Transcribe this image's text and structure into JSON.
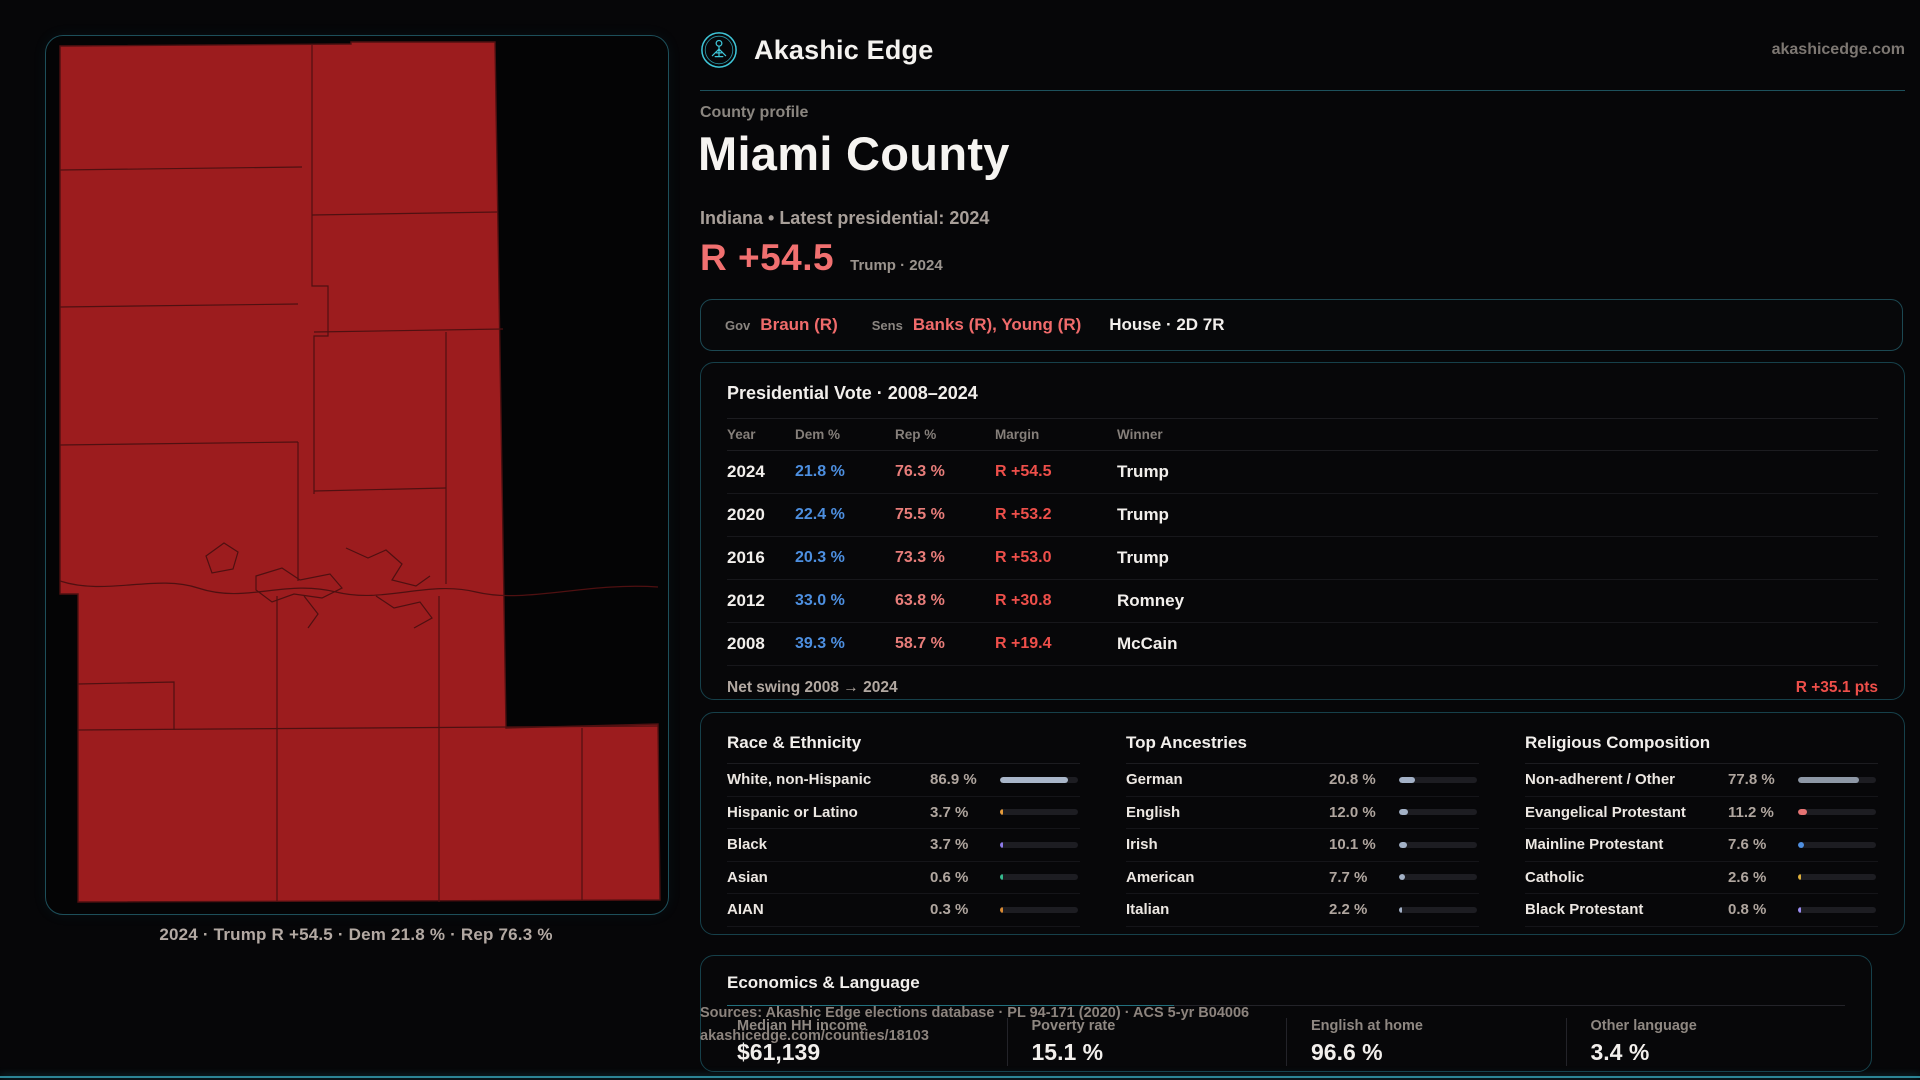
{
  "brand": {
    "name": "Akashic Edge",
    "site": "akashicedge.com"
  },
  "map": {
    "caption": "2024 · Trump R +54.5 · Dem 21.8 % · Rep 76.3 %"
  },
  "profile": {
    "kicker": "County profile",
    "title": "Miami County",
    "subtitle": "Indiana • Latest presidential: 2024",
    "margin_big": "R +54.5",
    "margin_note": "Trump · 2024"
  },
  "officials": {
    "gov_label": "Gov",
    "gov_value": "Braun (R)",
    "sens_label": "Sens",
    "sens_value": "Banks (R), Young (R)",
    "house_value": "House · 2D 7R"
  },
  "vote_table": {
    "title": "Presidential Vote · 2008–2024",
    "columns": [
      "Year",
      "Dem %",
      "Rep %",
      "Margin",
      "Winner"
    ],
    "rows": [
      {
        "year": "2024",
        "dem": "21.8 %",
        "rep": "76.3 %",
        "margin": "R +54.5",
        "winner": "Trump"
      },
      {
        "year": "2020",
        "dem": "22.4 %",
        "rep": "75.5 %",
        "margin": "R +53.2",
        "winner": "Trump"
      },
      {
        "year": "2016",
        "dem": "20.3 %",
        "rep": "73.3 %",
        "margin": "R +53.0",
        "winner": "Trump"
      },
      {
        "year": "2012",
        "dem": "33.0 %",
        "rep": "63.8 %",
        "margin": "R +30.8",
        "winner": "Romney"
      },
      {
        "year": "2008",
        "dem": "39.3 %",
        "rep": "58.7 %",
        "margin": "R +19.4",
        "winner": "McCain"
      }
    ],
    "net_swing_label": "Net swing 2008 → 2024",
    "net_swing_value": "R +35.1 pts"
  },
  "demographics": [
    {
      "title": "Race & Ethnicity",
      "rows": [
        {
          "label": "White, non-Hispanic",
          "value": "86.9 %",
          "pct": 86.9,
          "color": "#a9b6c9"
        },
        {
          "label": "Hispanic or Latino",
          "value": "3.7 %",
          "pct": 3.7,
          "color": "#e59b3b"
        },
        {
          "label": "Black",
          "value": "3.7 %",
          "pct": 3.7,
          "color": "#8d7ae8"
        },
        {
          "label": "Asian",
          "value": "0.6 %",
          "pct": 0.6,
          "color": "#36b98e"
        },
        {
          "label": "AIAN",
          "value": "0.3 %",
          "pct": 0.3,
          "color": "#d98a33"
        }
      ]
    },
    {
      "title": "Top Ancestries",
      "rows": [
        {
          "label": "German",
          "value": "20.8 %",
          "pct": 20.8,
          "color": "#a3b1c6"
        },
        {
          "label": "English",
          "value": "12.0 %",
          "pct": 12.0,
          "color": "#a3b1c6"
        },
        {
          "label": "Irish",
          "value": "10.1 %",
          "pct": 10.1,
          "color": "#a3b1c6"
        },
        {
          "label": "American",
          "value": "7.7 %",
          "pct": 7.7,
          "color": "#a3b1c6"
        },
        {
          "label": "Italian",
          "value": "2.2 %",
          "pct": 2.2,
          "color": "#a3b1c6"
        }
      ]
    },
    {
      "title": "Religious Composition",
      "rows": [
        {
          "label": "Non-adherent / Other",
          "value": "77.8 %",
          "pct": 77.8,
          "color": "#8e98a6"
        },
        {
          "label": "Evangelical Protestant",
          "value": "11.2 %",
          "pct": 11.2,
          "color": "#e57373"
        },
        {
          "label": "Mainline Protestant",
          "value": "7.6 %",
          "pct": 7.6,
          "color": "#4f8fe0"
        },
        {
          "label": "Catholic",
          "value": "2.6 %",
          "pct": 2.6,
          "color": "#ddaf3a"
        },
        {
          "label": "Black Protestant",
          "value": "0.8 %",
          "pct": 0.8,
          "color": "#9c8df2"
        }
      ]
    }
  ],
  "economics": {
    "title": "Economics & Language",
    "stats": [
      {
        "label": "Median HH income",
        "value": "$61,139"
      },
      {
        "label": "Poverty rate",
        "value": "15.1 %"
      },
      {
        "label": "English at home",
        "value": "96.6 %"
      },
      {
        "label": "Other language",
        "value": "3.4 %"
      }
    ]
  },
  "footer": {
    "sources_line1": "Sources: Akashic Edge elections database · PL 94-171 (2020) · ACS 5-yr B04006",
    "sources_line2": "akashicedge.com/counties/18103"
  },
  "colors": {
    "accent_red": "#f17070",
    "margin_red": "#ee4f4a",
    "dem_blue": "#4d8fe0",
    "rep_red": "#e87d7a",
    "teal_border": "#1d515c",
    "teal_bottom_line": "#2c8596",
    "map_fill": "#9c1c1e",
    "map_stroke": "#4f1011",
    "logo_cyan": "#3fc6d8"
  }
}
